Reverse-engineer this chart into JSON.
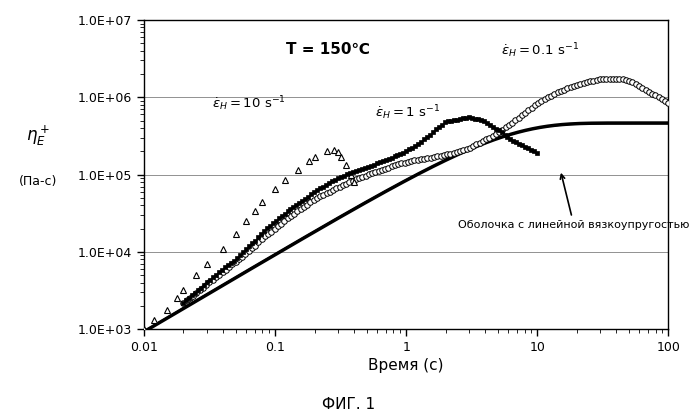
{
  "title": "T = 150℃",
  "xlabel": "Время (c)",
  "fig_caption": "ФИГ. 1",
  "annotation_text": "Оболочка с линейной вязкоупругостью",
  "xlim": [
    0.01,
    100
  ],
  "ylim": [
    1000,
    10000000.0
  ],
  "background_color": "#ffffff"
}
